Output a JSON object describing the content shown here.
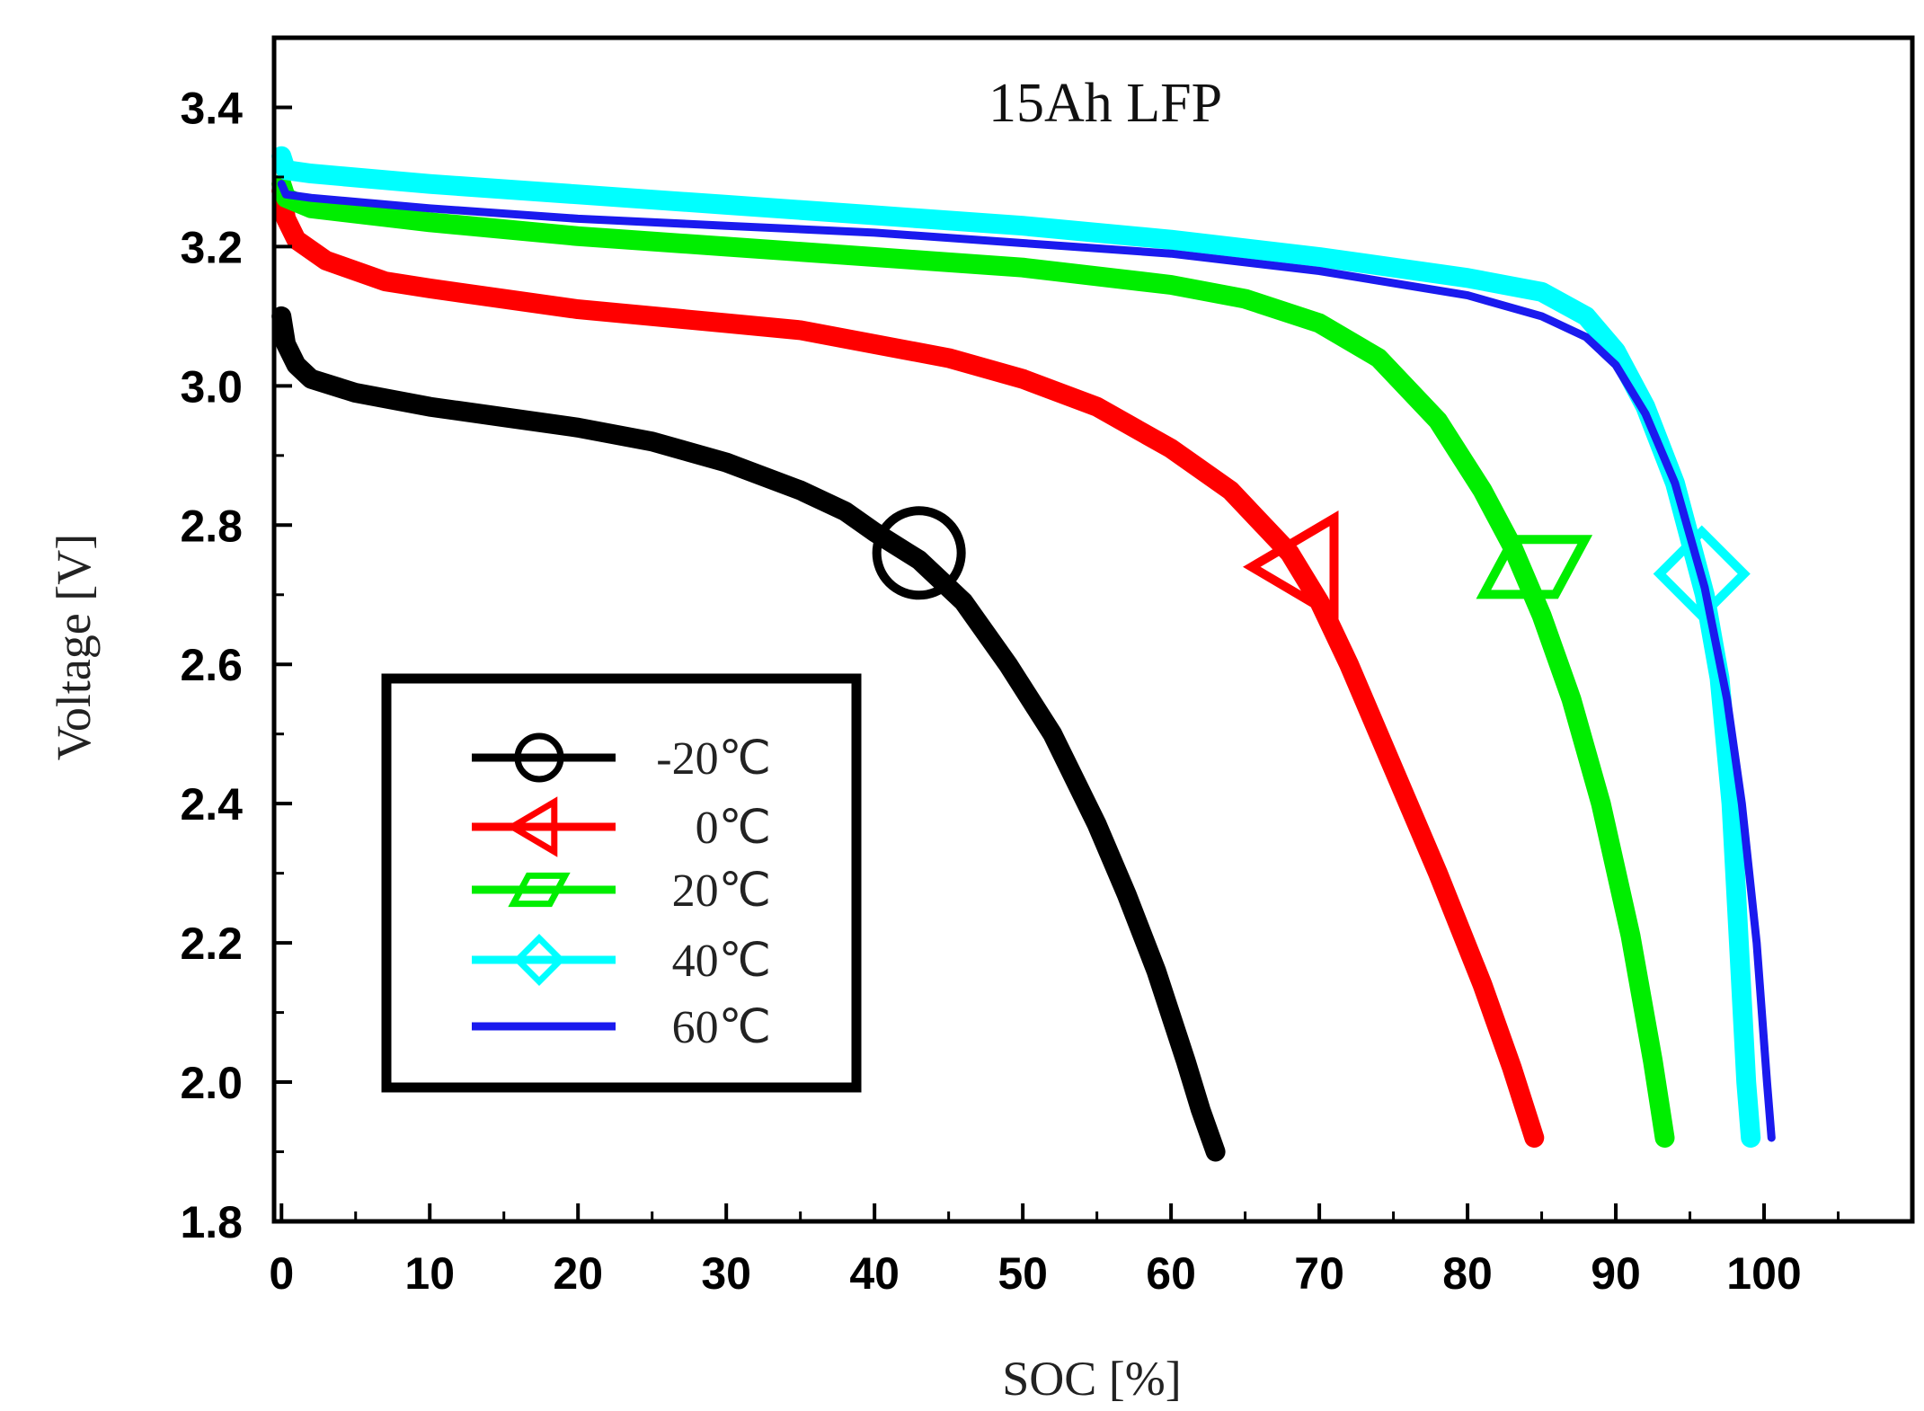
{
  "chart_data": {
    "type": "line",
    "title": "15Ah LFP",
    "xlabel": "SOC [%]",
    "ylabel": "Voltage [V]",
    "xlim": [
      -0.5,
      110
    ],
    "ylim": [
      1.8,
      3.5
    ],
    "x_ticks": [
      0,
      10,
      20,
      30,
      40,
      50,
      60,
      70,
      80,
      90,
      100
    ],
    "x_tick_labels": [
      "0",
      "10",
      "20",
      "30",
      "40",
      "50",
      "60",
      "70",
      "80",
      "90",
      "100"
    ],
    "y_ticks": [
      1.8,
      2.0,
      2.2,
      2.4,
      2.6,
      2.8,
      3.0,
      3.2,
      3.4
    ],
    "y_tick_labels": [
      "1.8",
      "2.0",
      "2.2",
      "2.4",
      "2.6",
      "2.8",
      "3.0",
      "3.2",
      "3.4"
    ],
    "legend_position": "lower-left",
    "series": [
      {
        "name": "-20℃",
        "color": "#000000",
        "marker": "circle",
        "marker_at": [
          43,
          2.76
        ],
        "points": [
          [
            0,
            3.1
          ],
          [
            0.3,
            3.06
          ],
          [
            1,
            3.03
          ],
          [
            2,
            3.01
          ],
          [
            5,
            2.99
          ],
          [
            10,
            2.97
          ],
          [
            15,
            2.955
          ],
          [
            20,
            2.94
          ],
          [
            25,
            2.92
          ],
          [
            30,
            2.89
          ],
          [
            35,
            2.85
          ],
          [
            38,
            2.82
          ],
          [
            40,
            2.79
          ],
          [
            43,
            2.75
          ],
          [
            46,
            2.69
          ],
          [
            49,
            2.6
          ],
          [
            52,
            2.5
          ],
          [
            55,
            2.37
          ],
          [
            57,
            2.27
          ],
          [
            59,
            2.16
          ],
          [
            61,
            2.03
          ],
          [
            62,
            1.96
          ],
          [
            63,
            1.9
          ]
        ]
      },
      {
        "name": "0℃",
        "color": "#ff0000",
        "marker": "triangle-left",
        "marker_at": [
          69,
          2.74
        ],
        "points": [
          [
            0,
            3.28
          ],
          [
            0.3,
            3.24
          ],
          [
            1,
            3.21
          ],
          [
            3,
            3.18
          ],
          [
            7,
            3.15
          ],
          [
            10,
            3.14
          ],
          [
            20,
            3.11
          ],
          [
            30,
            3.09
          ],
          [
            35,
            3.08
          ],
          [
            40,
            3.06
          ],
          [
            45,
            3.04
          ],
          [
            50,
            3.01
          ],
          [
            55,
            2.97
          ],
          [
            60,
            2.91
          ],
          [
            64,
            2.85
          ],
          [
            68,
            2.76
          ],
          [
            70,
            2.69
          ],
          [
            72,
            2.6
          ],
          [
            75,
            2.45
          ],
          [
            78,
            2.3
          ],
          [
            81,
            2.14
          ],
          [
            83,
            2.02
          ],
          [
            84.5,
            1.92
          ]
        ]
      },
      {
        "name": "20℃",
        "color": "#00ee00",
        "marker": "square",
        "marker_at": [
          84.5,
          2.74
        ],
        "points": [
          [
            0,
            3.29
          ],
          [
            0.3,
            3.27
          ],
          [
            2,
            3.255
          ],
          [
            10,
            3.235
          ],
          [
            20,
            3.215
          ],
          [
            30,
            3.2
          ],
          [
            40,
            3.185
          ],
          [
            50,
            3.17
          ],
          [
            60,
            3.145
          ],
          [
            65,
            3.125
          ],
          [
            70,
            3.09
          ],
          [
            74,
            3.04
          ],
          [
            78,
            2.95
          ],
          [
            81,
            2.85
          ],
          [
            83,
            2.77
          ],
          [
            85,
            2.67
          ],
          [
            87,
            2.55
          ],
          [
            89,
            2.4
          ],
          [
            91,
            2.21
          ],
          [
            92.5,
            2.03
          ],
          [
            93.3,
            1.92
          ]
        ]
      },
      {
        "name": "40℃",
        "color": "#00ffff",
        "marker": "diamond",
        "marker_at": [
          95.8,
          2.73
        ],
        "points": [
          [
            0,
            3.33
          ],
          [
            0.3,
            3.31
          ],
          [
            2,
            3.305
          ],
          [
            10,
            3.29
          ],
          [
            20,
            3.275
          ],
          [
            30,
            3.26
          ],
          [
            40,
            3.245
          ],
          [
            50,
            3.23
          ],
          [
            60,
            3.21
          ],
          [
            70,
            3.185
          ],
          [
            80,
            3.155
          ],
          [
            85,
            3.135
          ],
          [
            88,
            3.1
          ],
          [
            90,
            3.05
          ],
          [
            92,
            2.97
          ],
          [
            94,
            2.86
          ],
          [
            96,
            2.7
          ],
          [
            97,
            2.58
          ],
          [
            97.8,
            2.4
          ],
          [
            98.3,
            2.2
          ],
          [
            98.8,
            2.0
          ],
          [
            99.1,
            1.92
          ]
        ]
      },
      {
        "name": "60℃",
        "color": "#1a1aee",
        "marker": "none",
        "points": [
          [
            0,
            3.29
          ],
          [
            0.3,
            3.275
          ],
          [
            2,
            3.27
          ],
          [
            10,
            3.255
          ],
          [
            20,
            3.24
          ],
          [
            30,
            3.23
          ],
          [
            40,
            3.22
          ],
          [
            50,
            3.205
          ],
          [
            60,
            3.19
          ],
          [
            70,
            3.165
          ],
          [
            80,
            3.13
          ],
          [
            85,
            3.1
          ],
          [
            88,
            3.07
          ],
          [
            90,
            3.03
          ],
          [
            92,
            2.96
          ],
          [
            94,
            2.86
          ],
          [
            96,
            2.71
          ],
          [
            97.5,
            2.55
          ],
          [
            98.5,
            2.4
          ],
          [
            99.5,
            2.2
          ],
          [
            100.2,
            2.0
          ],
          [
            100.5,
            1.92
          ]
        ]
      }
    ]
  }
}
